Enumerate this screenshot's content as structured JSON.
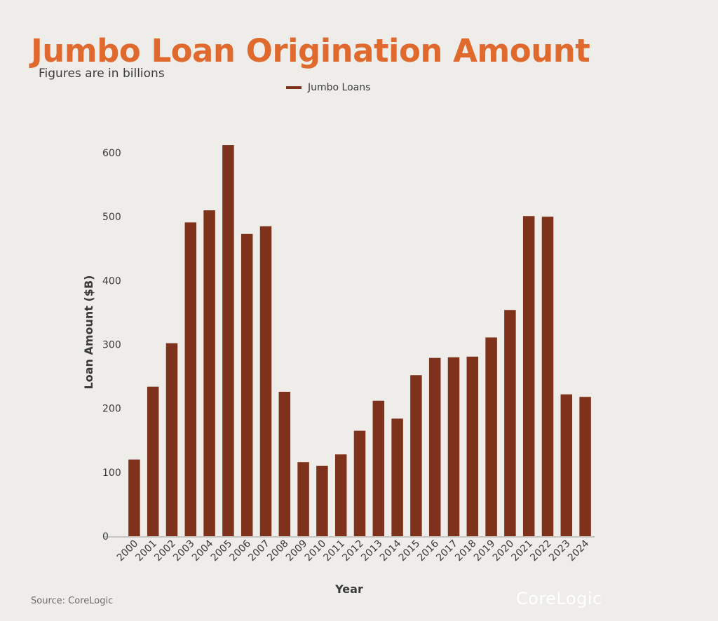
{
  "chart_data": {
    "type": "bar",
    "title": "Jumbo Loan Origination Amount",
    "subtitle": "Figures are in billions",
    "xlabel": "Year",
    "ylabel": "Loan Amount ($B)",
    "ylim": [
      0,
      600
    ],
    "yticks": [
      0,
      100,
      200,
      300,
      400,
      500,
      600
    ],
    "grid": false,
    "legend_position": "top-center",
    "categories": [
      "2000",
      "2001",
      "2002",
      "2003",
      "2004",
      "2005",
      "2006",
      "2007",
      "2008",
      "2009",
      "2010",
      "2011",
      "2012",
      "2013",
      "2014",
      "2015",
      "2016",
      "2017",
      "2018",
      "2019",
      "2020",
      "2021",
      "2022",
      "2023",
      "2024"
    ],
    "series": [
      {
        "name": "Jumbo Loans",
        "color": "#7f321b",
        "values": [
          120,
          234,
          302,
          491,
          510,
          612,
          473,
          485,
          226,
          116,
          110,
          128,
          165,
          212,
          184,
          252,
          279,
          280,
          281,
          311,
          354,
          501,
          500,
          222,
          218
        ]
      }
    ]
  },
  "source": "Source: CoreLogic",
  "logo_text": "CoreLogic"
}
